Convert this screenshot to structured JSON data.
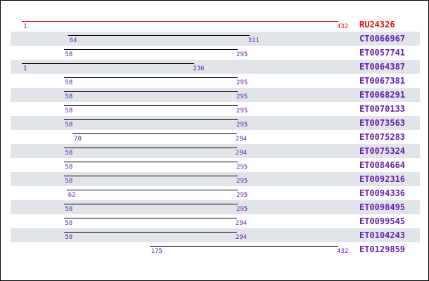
{
  "colors": {
    "reference": "#e01010",
    "hit": "#6a1fb0",
    "line": "#000000",
    "stripe": "#e1e5ea"
  },
  "scale": {
    "min": 1,
    "max": 432
  },
  "reference": {
    "id": "RU24326",
    "start": 1,
    "end": 432
  },
  "rows": [
    {
      "id": "CT0066967",
      "start": 64,
      "end": 311
    },
    {
      "id": "ET0057741",
      "start": 58,
      "end": 295
    },
    {
      "id": "ET0064387",
      "start": 1,
      "end": 236
    },
    {
      "id": "ET0067381",
      "start": 58,
      "end": 295
    },
    {
      "id": "ET0068291",
      "start": 58,
      "end": 295
    },
    {
      "id": "ET0070133",
      "start": 58,
      "end": 295
    },
    {
      "id": "ET0073563",
      "start": 58,
      "end": 295
    },
    {
      "id": "ET0075283",
      "start": 70,
      "end": 294
    },
    {
      "id": "ET0075324",
      "start": 58,
      "end": 294
    },
    {
      "id": "ET0084664",
      "start": 58,
      "end": 295
    },
    {
      "id": "ET0092316",
      "start": 58,
      "end": 295
    },
    {
      "id": "ET0094336",
      "start": 62,
      "end": 295
    },
    {
      "id": "ET0098495",
      "start": 58,
      "end": 295
    },
    {
      "id": "ET0099545",
      "start": 58,
      "end": 294
    },
    {
      "id": "ET0104243",
      "start": 58,
      "end": 294
    },
    {
      "id": "ET0129859",
      "start": 175,
      "end": 432
    }
  ]
}
